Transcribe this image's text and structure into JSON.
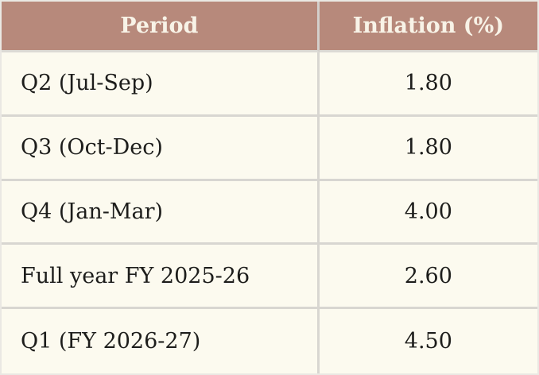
{
  "table": {
    "columns": [
      {
        "label": "Period"
      },
      {
        "label": "Inflation (%)"
      }
    ],
    "rows": [
      {
        "period": "Q2 (Jul-Sep)",
        "value": "1.80"
      },
      {
        "period": "Q3 (Oct-Dec)",
        "value": "1.80"
      },
      {
        "period": "Q4 (Jan-Mar)",
        "value": "4.00"
      },
      {
        "period": "Full year FY 2025-26",
        "value": "2.60"
      },
      {
        "period": "Q1 (FY 2026-27)",
        "value": "4.50"
      }
    ]
  },
  "colors": {
    "header_background": "#b7897b",
    "header_text": "#f8f3e7",
    "body_background": "#fcfaef",
    "grid_border": "#d8d6d1",
    "body_text": "#1d1d1b"
  },
  "chart_data": {
    "type": "table",
    "columns": [
      "Period",
      "Inflation (%)"
    ],
    "categories": [
      "Q2 (Jul-Sep)",
      "Q3 (Oct-Dec)",
      "Q4 (Jan-Mar)",
      "Full year FY 2025-26",
      "Q1 (FY 2026-27)"
    ],
    "values": [
      1.8,
      1.8,
      4.0,
      2.6,
      4.5
    ],
    "layout": {
      "header_fill": "#b7897b",
      "body_fill": "#fcfaef",
      "grid": "on"
    }
  }
}
